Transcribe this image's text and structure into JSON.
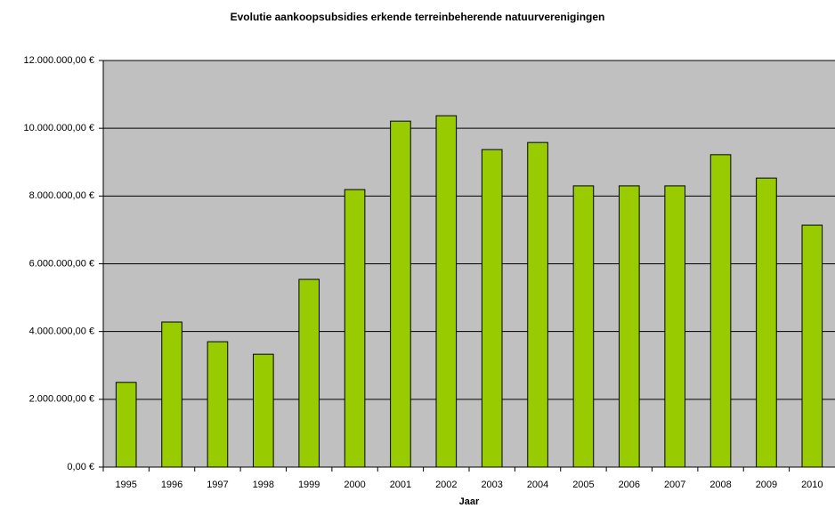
{
  "chart_data": {
    "type": "bar",
    "title": "Evolutie aankoopsubsidies erkende terreinbeherende natuurverenigingen",
    "x_label": "Jaar",
    "categories": [
      "1995",
      "1996",
      "1997",
      "1998",
      "1999",
      "2000",
      "2001",
      "2002",
      "2003",
      "2004",
      "2005",
      "2006",
      "2007",
      "2008",
      "2009",
      "2010"
    ],
    "values": [
      2500000,
      4280000,
      3700000,
      3330000,
      5540000,
      8190000,
      10210000,
      10370000,
      9370000,
      9580000,
      8300000,
      8300000,
      8300000,
      9220000,
      8530000,
      7140000
    ],
    "color": "#99cc00",
    "plot_background": "#c0c0c0",
    "ylim": [
      0,
      12000000
    ],
    "yticks": [
      {
        "value": 0,
        "label": "0,00 €"
      },
      {
        "value": 2000000,
        "label": "2.000.000,00 €"
      },
      {
        "value": 4000000,
        "label": "4.000.000,00 €"
      },
      {
        "value": 6000000,
        "label": "6.000.000,00 €"
      },
      {
        "value": 8000000,
        "label": "8.000.000,00 €"
      },
      {
        "value": 10000000,
        "label": "10.000.000,00 €"
      },
      {
        "value": 12000000,
        "label": "12.000.000,00 €"
      }
    ],
    "grid": true
  }
}
